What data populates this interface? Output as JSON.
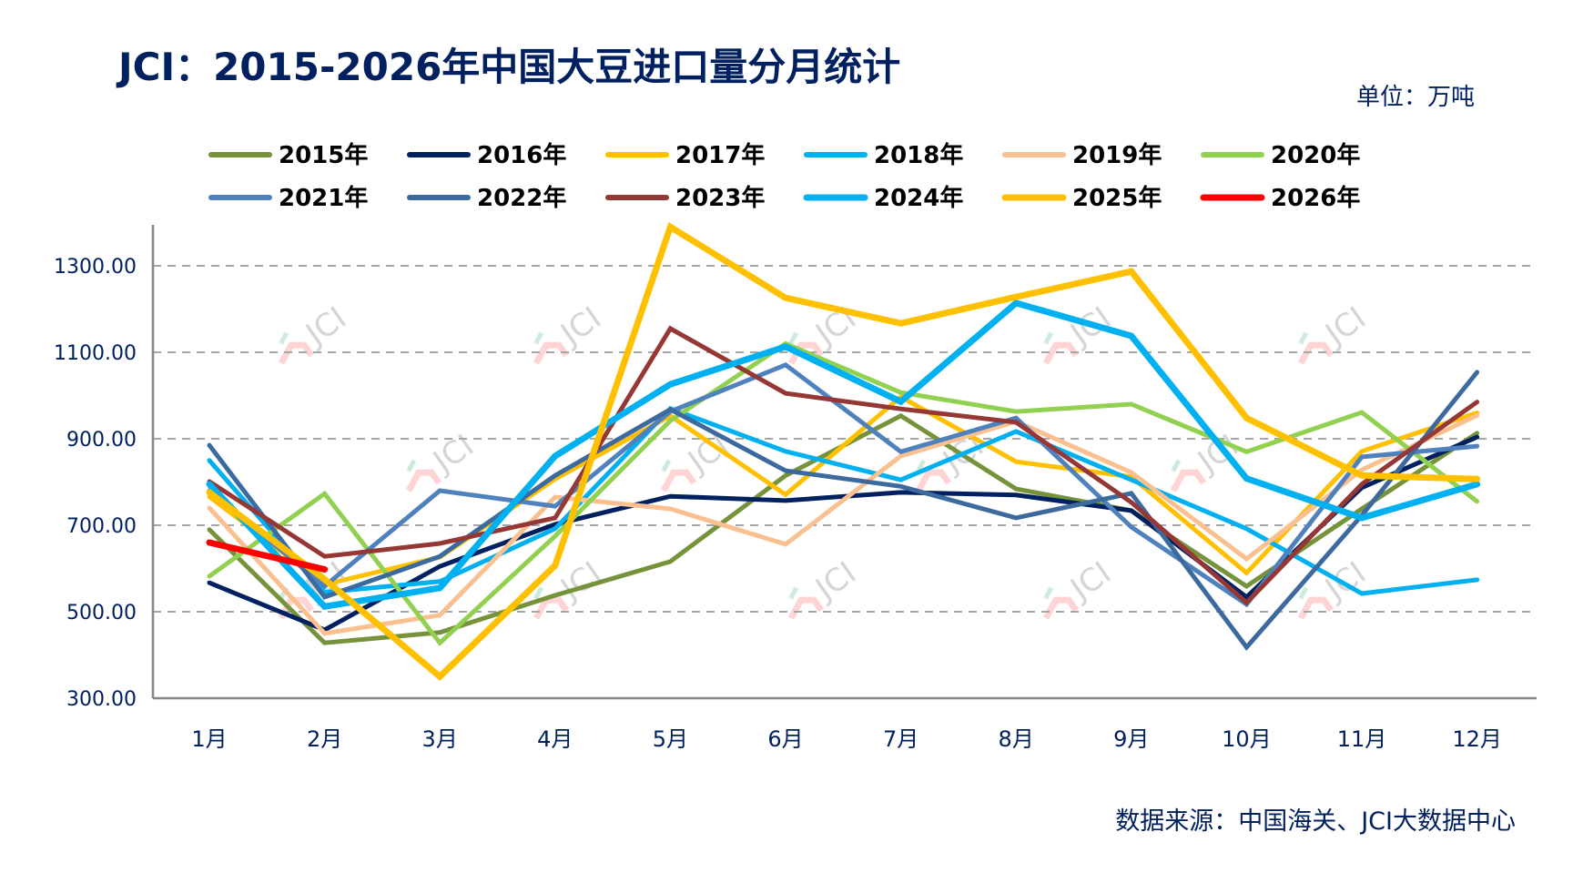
{
  "header": {
    "title": "JCI：2015-2026年中国大豆进口量分月统计",
    "unit": "单位：万吨"
  },
  "footer": {
    "source": "数据来源：中国海关、JCI大数据中心"
  },
  "watermark": {
    "text": "JCI"
  },
  "chart_data": {
    "type": "line",
    "title": "JCI：2015-2026年中国大豆进口量分月统计",
    "xlabel": "",
    "ylabel": "万吨",
    "ylim": [
      300,
      1400
    ],
    "yticks": [
      300,
      500,
      700,
      900,
      1100,
      1300
    ],
    "ytick_labels": [
      "300.00",
      "500.00",
      "700.00",
      "900.00",
      "1100.00",
      "1300.00"
    ],
    "grid": true,
    "legend_position": "top",
    "categories": [
      "1月",
      "2月",
      "3月",
      "4月",
      "5月",
      "6月",
      "7月",
      "8月",
      "9月",
      "10月",
      "11月",
      "12月"
    ],
    "series": [
      {
        "name": "2015年",
        "color": "#76933C",
        "weight": "normal",
        "values": [
          690,
          428,
          452,
          538,
          616,
          815,
          953,
          784,
          734,
          559,
          738,
          913
        ]
      },
      {
        "name": "2016年",
        "color": "#002060",
        "weight": "normal",
        "values": [
          567,
          458,
          605,
          702,
          767,
          757,
          776,
          770,
          734,
          534,
          787,
          904
        ]
      },
      {
        "name": "2017年",
        "color": "#FFC000",
        "weight": "normal",
        "values": [
          766,
          563,
          626,
          807,
          953,
          771,
          997,
          847,
          812,
          590,
          871,
          960
        ]
      },
      {
        "name": "2018年",
        "color": "#00B0F0",
        "weight": "normal",
        "values": [
          850,
          545,
          570,
          692,
          970,
          871,
          805,
          917,
          805,
          692,
          542,
          574
        ]
      },
      {
        "name": "2019年",
        "color": "#FAC090",
        "weight": "normal",
        "values": [
          740,
          450,
          492,
          765,
          738,
          656,
          860,
          940,
          822,
          622,
          828,
          954
        ]
      },
      {
        "name": "2020年",
        "color": "#92D050",
        "weight": "normal",
        "values": [
          582,
          773,
          428,
          675,
          942,
          1120,
          1007,
          963,
          980,
          870,
          961,
          755
        ]
      },
      {
        "name": "2021年",
        "color": "#4F81BD",
        "weight": "normal",
        "values": [
          780,
          559,
          780,
          744,
          963,
          1071,
          870,
          948,
          696,
          517,
          858,
          883
        ]
      },
      {
        "name": "2022年",
        "color": "#3D6A9E",
        "weight": "normal",
        "values": [
          885,
          534,
          628,
          815,
          968,
          826,
          790,
          717,
          774,
          418,
          723,
          1054
        ]
      },
      {
        "name": "2023年",
        "color": "#953735",
        "weight": "normal",
        "values": [
          801,
          628,
          658,
          717,
          1155,
          1005,
          969,
          938,
          753,
          521,
          795,
          985
        ]
      },
      {
        "name": "2024年",
        "color": "#00B0F0",
        "weight": "thick",
        "values": [
          795,
          512,
          555,
          860,
          1026,
          1113,
          986,
          1214,
          1138,
          808,
          717,
          795
        ]
      },
      {
        "name": "2025年",
        "color": "#FFC000",
        "weight": "thick",
        "values": [
          776,
          575,
          350,
          607,
          1390,
          1226,
          1167,
          1228,
          1287,
          948,
          815,
          807
        ]
      },
      {
        "name": "2026年",
        "color": "#FF0000",
        "weight": "thick",
        "values": [
          660,
          598
        ]
      }
    ]
  }
}
